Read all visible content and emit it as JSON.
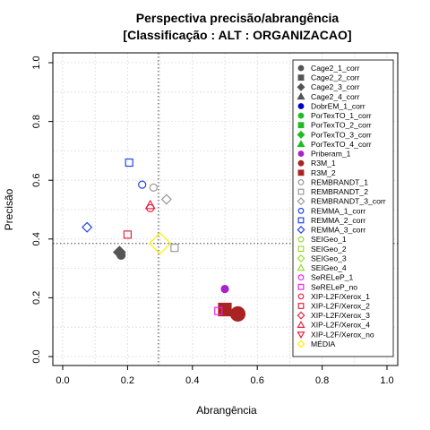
{
  "chart_data": {
    "type": "scatter",
    "title": "Perspectiva precisão/abrangência",
    "subtitle": "[Classificação : ALT : ORGANIZACAO]",
    "xlabel": "Abrangência",
    "ylabel": "Precisão",
    "xlim": [
      0,
      1
    ],
    "ylim": [
      0,
      1
    ],
    "x_ticks": [
      "0.0",
      "0.2",
      "0.4",
      "0.6",
      "0.8",
      "1.0"
    ],
    "y_ticks": [
      "0.0",
      "0.2",
      "0.4",
      "0.6",
      "0.8",
      "1.0"
    ],
    "grid": true,
    "legend_position": "right",
    "reference_lines": {
      "x": 0.295,
      "y": 0.385,
      "style": "dotted"
    },
    "series": [
      {
        "name": "Cage2_1_corr",
        "shape": "circle",
        "filled": true,
        "color": "#555555",
        "points": [
          [
            0.18,
            0.345
          ]
        ]
      },
      {
        "name": "Cage2_2_corr",
        "shape": "square",
        "filled": true,
        "color": "#555555",
        "points": []
      },
      {
        "name": "Cage2_3_corr",
        "shape": "diamond",
        "filled": true,
        "color": "#555555",
        "points": [
          [
            0.175,
            0.355
          ]
        ]
      },
      {
        "name": "Cage2_4_corr",
        "shape": "triangle",
        "filled": true,
        "color": "#555555",
        "points": []
      },
      {
        "name": "DobrEM_1_corr",
        "shape": "circle",
        "filled": true,
        "color": "#0000cc",
        "points": []
      },
      {
        "name": "PorTexTO_1_corr",
        "shape": "circle",
        "filled": true,
        "color": "#22bb22",
        "points": []
      },
      {
        "name": "PorTexTO_2_corr",
        "shape": "square",
        "filled": true,
        "color": "#22bb22",
        "points": []
      },
      {
        "name": "PorTexTO_3_corr",
        "shape": "diamond",
        "filled": true,
        "color": "#22bb22",
        "points": []
      },
      {
        "name": "PorTexTO_4_corr",
        "shape": "triangle",
        "filled": true,
        "color": "#22bb22",
        "points": []
      },
      {
        "name": "Priberam_1",
        "shape": "circle",
        "filled": true,
        "color": "#aa22cc",
        "points": [
          [
            0.5,
            0.23
          ]
        ]
      },
      {
        "name": "R3M_1",
        "shape": "circle",
        "filled": true,
        "color": "#aa2222",
        "points": [
          [
            0.54,
            0.145
          ]
        ]
      },
      {
        "name": "R3M_2",
        "shape": "square",
        "filled": true,
        "color": "#aa2222",
        "points": [
          [
            0.5,
            0.16
          ]
        ]
      },
      {
        "name": "REMBRANDT_1",
        "shape": "circle",
        "filled": false,
        "color": "#999999",
        "points": [
          [
            0.28,
            0.575
          ]
        ]
      },
      {
        "name": "REMBRANDT_2",
        "shape": "square",
        "filled": false,
        "color": "#999999",
        "points": [
          [
            0.345,
            0.37
          ]
        ]
      },
      {
        "name": "REMBRANDT_3_corr",
        "shape": "diamond",
        "filled": false,
        "color": "#999999",
        "points": [
          [
            0.32,
            0.535
          ]
        ]
      },
      {
        "name": "REMMA_1_corr",
        "shape": "circle",
        "filled": false,
        "color": "#2244ee",
        "points": [
          [
            0.245,
            0.585
          ]
        ]
      },
      {
        "name": "REMMA_2_corr",
        "shape": "square",
        "filled": false,
        "color": "#2244ee",
        "points": [
          [
            0.205,
            0.66
          ]
        ]
      },
      {
        "name": "REMMA_3_corr",
        "shape": "diamond",
        "filled": false,
        "color": "#2244ee",
        "points": [
          [
            0.075,
            0.44
          ]
        ]
      },
      {
        "name": "SEIGeo_1",
        "shape": "circle",
        "filled": false,
        "color": "#99dd33",
        "points": []
      },
      {
        "name": "SEIGeo_2",
        "shape": "square",
        "filled": false,
        "color": "#99dd33",
        "points": []
      },
      {
        "name": "SEIGeo_3",
        "shape": "diamond",
        "filled": false,
        "color": "#99dd33",
        "points": []
      },
      {
        "name": "SEIGeo_4",
        "shape": "triangle",
        "filled": false,
        "color": "#99dd33",
        "points": []
      },
      {
        "name": "SeRELeP_1",
        "shape": "circle",
        "filled": false,
        "color": "#ee22ee",
        "points": []
      },
      {
        "name": "SeRELeP_no",
        "shape": "square",
        "filled": false,
        "color": "#ee22ee",
        "points": [
          [
            0.48,
            0.155
          ]
        ]
      },
      {
        "name": "XIP-L2F/Xerox_1",
        "shape": "circle",
        "filled": false,
        "color": "#ee2244",
        "points": [
          [
            0.27,
            0.505
          ]
        ]
      },
      {
        "name": "XIP-L2F/Xerox_2",
        "shape": "square",
        "filled": false,
        "color": "#ee2244",
        "points": [
          [
            0.2,
            0.415
          ]
        ]
      },
      {
        "name": "XIP-L2F/Xerox_3",
        "shape": "diamond",
        "filled": false,
        "color": "#ee2244",
        "points": []
      },
      {
        "name": "XIP-L2F/Xerox_4",
        "shape": "triangle",
        "filled": false,
        "color": "#ee2244",
        "points": [
          [
            0.27,
            0.515
          ]
        ]
      },
      {
        "name": "XIP-L2F/Xerox_no",
        "shape": "triangle-down",
        "filled": false,
        "color": "#ee2244",
        "points": []
      },
      {
        "name": "MÉDIA",
        "shape": "diamond",
        "filled": false,
        "color": "#ffee00",
        "points": [
          [
            0.3,
            0.385
          ]
        ]
      }
    ]
  }
}
